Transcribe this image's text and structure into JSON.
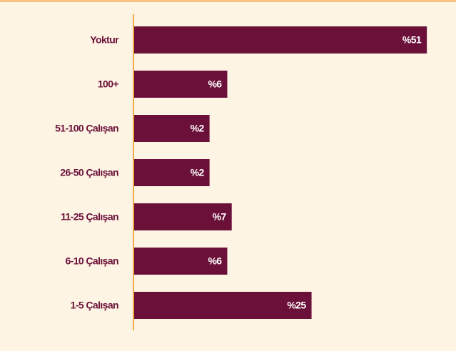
{
  "chart_data": {
    "type": "barh",
    "categories": [
      "Yoktur",
      "100+",
      "51-100 Çalışan",
      "26-50 Çalışan",
      "11-25 Çalışan",
      "6-10 Çalışan",
      "1-5 Çalışan"
    ],
    "values": [
      51,
      6,
      2,
      2,
      7,
      6,
      25
    ],
    "value_labels": [
      "%51",
      "%6",
      "%2",
      "%2",
      "%7",
      "%6",
      "%25"
    ],
    "color": "#6b1038",
    "xlim": [
      -15,
      55
    ]
  }
}
